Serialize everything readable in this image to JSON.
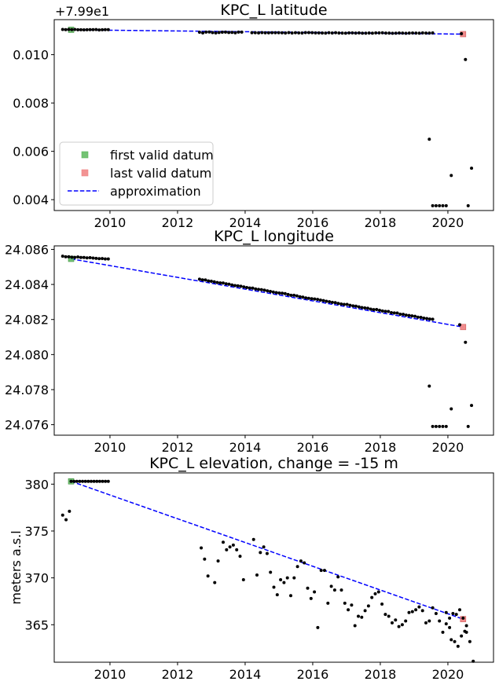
{
  "chart_data": [
    {
      "type": "scatter",
      "title": "KPC_L latitude",
      "ylabel": "",
      "offset_label": "+7.99e1",
      "xlim": [
        2008.35,
        2021.35
      ],
      "ylim": [
        0.00355,
        0.01145
      ],
      "xticks": [
        2010,
        2012,
        2014,
        2016,
        2018,
        2020
      ],
      "xtick_labels": [
        "2010",
        "2012",
        "2014",
        "2016",
        "2018",
        "2020"
      ],
      "yticks": [
        0.004,
        0.006,
        0.008,
        0.01
      ],
      "ytick_labels": [
        "0.004",
        "0.006",
        "0.008",
        "0.010"
      ],
      "legend": {
        "placement": "lower-left",
        "entries": [
          {
            "label": "first valid datum",
            "kind": "square",
            "color": "#5cb85c"
          },
          {
            "label": "last valid datum",
            "kind": "square",
            "color": "#f08080"
          },
          {
            "label": "approximation",
            "kind": "dashed",
            "color": "#0000ff"
          }
        ]
      },
      "first_valid": [
        2008.85,
        0.01103
      ],
      "last_valid": [
        2020.45,
        0.01085
      ],
      "approximation": [
        [
          2008.85,
          0.01103
        ],
        [
          2020.45,
          0.01085
        ]
      ],
      "segments": [
        {
          "x0": 2008.6,
          "x1": 2009.95,
          "n": 16,
          "y0": 0.01104,
          "y1": 0.01103,
          "jitter": 1e-05
        },
        {
          "x0": 2012.65,
          "x1": 2013.9,
          "n": 14,
          "y0": 0.01092,
          "y1": 0.01092,
          "jitter": 2e-05
        },
        {
          "x0": 2014.2,
          "x1": 2019.55,
          "n": 55,
          "y0": 0.01091,
          "y1": 0.01089,
          "jitter": 1e-05
        }
      ],
      "points": [
        [
          2019.45,
          0.0065
        ],
        [
          2019.55,
          0.00375
        ],
        [
          2019.65,
          0.00375
        ],
        [
          2019.75,
          0.00375
        ],
        [
          2019.85,
          0.00375
        ],
        [
          2019.95,
          0.00375
        ],
        [
          2020.1,
          0.005
        ],
        [
          2020.4,
          0.01087
        ],
        [
          2020.52,
          0.0098
        ],
        [
          2020.6,
          0.00375
        ],
        [
          2020.7,
          0.0053
        ]
      ]
    },
    {
      "type": "scatter",
      "title": "KPC_L longitude",
      "ylabel": "",
      "xlim": [
        2008.35,
        2021.35
      ],
      "ylim": [
        24.0754,
        24.0862
      ],
      "xticks": [
        2010,
        2012,
        2014,
        2016,
        2018,
        2020
      ],
      "xtick_labels": [
        "2010",
        "2012",
        "2014",
        "2016",
        "2018",
        "2020"
      ],
      "yticks": [
        24.076,
        24.078,
        24.08,
        24.082,
        24.084,
        24.086
      ],
      "ytick_labels": [
        "24.076",
        "24.078",
        "24.080",
        "24.082",
        "24.084",
        "24.086"
      ],
      "first_valid": [
        2008.85,
        24.08546
      ],
      "last_valid": [
        2020.45,
        24.08157
      ],
      "approximation": [
        [
          2008.85,
          24.08546
        ],
        [
          2020.45,
          24.08157
        ]
      ],
      "segments": [
        {
          "x0": 2008.6,
          "x1": 2009.95,
          "n": 16,
          "y0": 24.0856,
          "y1": 24.08545,
          "jitter": 2e-05
        },
        {
          "x0": 2012.65,
          "x1": 2019.55,
          "n": 80,
          "y0": 24.0843,
          "y1": 24.082,
          "jitter": 2e-05
        }
      ],
      "points": [
        [
          2019.45,
          24.0782
        ],
        [
          2019.55,
          24.0759
        ],
        [
          2019.65,
          24.0759
        ],
        [
          2019.75,
          24.0759
        ],
        [
          2019.85,
          24.0759
        ],
        [
          2019.95,
          24.0759
        ],
        [
          2020.1,
          24.0769
        ],
        [
          2020.35,
          24.0817
        ],
        [
          2020.52,
          24.0807
        ],
        [
          2020.6,
          24.0759
        ],
        [
          2020.7,
          24.0771
        ]
      ]
    },
    {
      "type": "scatter",
      "title": "KPC_L elevation, change = -15 m",
      "ylabel": "meters a.s.l",
      "xlim": [
        2008.35,
        2021.35
      ],
      "ylim": [
        361.0,
        381.2
      ],
      "xticks": [
        2010,
        2012,
        2014,
        2016,
        2018,
        2020
      ],
      "xtick_labels": [
        "2010",
        "2012",
        "2014",
        "2016",
        "2018",
        "2020"
      ],
      "yticks": [
        365,
        370,
        375,
        380
      ],
      "ytick_labels": [
        "365",
        "370",
        "375",
        "380"
      ],
      "first_valid": [
        2008.85,
        380.3
      ],
      "last_valid": [
        2020.45,
        365.6
      ],
      "approximation": [
        [
          2008.85,
          380.3
        ],
        [
          2020.45,
          365.6
        ]
      ],
      "segments": [
        {
          "x0": 2008.85,
          "x1": 2009.95,
          "n": 14,
          "y0": 380.3,
          "y1": 380.3,
          "jitter": 0.0
        }
      ],
      "points": [
        [
          2008.6,
          376.7
        ],
        [
          2008.7,
          376.2
        ],
        [
          2008.8,
          377.1
        ],
        [
          2012.7,
          373.2
        ],
        [
          2012.8,
          372.0
        ],
        [
          2012.9,
          370.2
        ],
        [
          2013.1,
          369.5
        ],
        [
          2013.2,
          371.8
        ],
        [
          2013.35,
          373.8
        ],
        [
          2013.45,
          373.0
        ],
        [
          2013.55,
          373.3
        ],
        [
          2013.65,
          373.5
        ],
        [
          2013.75,
          373.0
        ],
        [
          2013.85,
          372.3
        ],
        [
          2013.95,
          369.8
        ],
        [
          2014.25,
          374.1
        ],
        [
          2014.35,
          370.3
        ],
        [
          2014.45,
          372.7
        ],
        [
          2014.55,
          373.3
        ],
        [
          2014.65,
          372.6
        ],
        [
          2014.75,
          370.6
        ],
        [
          2014.85,
          369.0
        ],
        [
          2014.95,
          368.2
        ],
        [
          2015.05,
          369.8
        ],
        [
          2015.15,
          369.5
        ],
        [
          2015.25,
          370.0
        ],
        [
          2015.35,
          368.1
        ],
        [
          2015.45,
          370.0
        ],
        [
          2015.55,
          371.2
        ],
        [
          2015.65,
          371.8
        ],
        [
          2015.75,
          371.6
        ],
        [
          2015.85,
          368.9
        ],
        [
          2015.95,
          367.8
        ],
        [
          2016.05,
          368.5
        ],
        [
          2016.15,
          364.7
        ],
        [
          2016.25,
          370.8
        ],
        [
          2016.35,
          370.8
        ],
        [
          2016.45,
          367.3
        ],
        [
          2016.55,
          369.1
        ],
        [
          2016.65,
          368.7
        ],
        [
          2016.75,
          370.1
        ],
        [
          2016.85,
          368.7
        ],
        [
          2016.95,
          367.3
        ],
        [
          2017.05,
          366.6
        ],
        [
          2017.15,
          367.1
        ],
        [
          2017.25,
          364.9
        ],
        [
          2017.35,
          365.9
        ],
        [
          2017.45,
          365.8
        ],
        [
          2017.55,
          366.5
        ],
        [
          2017.65,
          367.0
        ],
        [
          2017.75,
          367.9
        ],
        [
          2017.85,
          368.3
        ],
        [
          2017.95,
          368.5
        ],
        [
          2018.05,
          367.2
        ],
        [
          2018.15,
          366.1
        ],
        [
          2018.25,
          365.9
        ],
        [
          2018.35,
          365.2
        ],
        [
          2018.45,
          365.5
        ],
        [
          2018.55,
          364.8
        ],
        [
          2018.65,
          365.0
        ],
        [
          2018.75,
          365.4
        ],
        [
          2018.85,
          366.3
        ],
        [
          2018.95,
          366.4
        ],
        [
          2019.05,
          366.6
        ],
        [
          2019.15,
          366.9
        ],
        [
          2019.25,
          366.5
        ],
        [
          2019.35,
          365.2
        ],
        [
          2019.45,
          365.4
        ],
        [
          2019.55,
          366.8
        ],
        [
          2019.65,
          366.2
        ],
        [
          2019.75,
          365.4
        ],
        [
          2019.85,
          364.2
        ],
        [
          2019.95,
          365.1
        ],
        [
          2020.05,
          365.7
        ],
        [
          2020.15,
          366.2
        ],
        [
          2020.25,
          366.1
        ],
        [
          2020.35,
          366.6
        ],
        [
          2020.45,
          365.7
        ],
        [
          2020.55,
          364.9
        ],
        [
          2020.65,
          363.2
        ],
        [
          2020.75,
          361.1
        ],
        [
          2019.95,
          366.3
        ],
        [
          2020.05,
          364.7
        ],
        [
          2020.1,
          363.4
        ],
        [
          2020.2,
          363.2
        ],
        [
          2020.3,
          362.7
        ],
        [
          2020.4,
          363.8
        ],
        [
          2020.5,
          364.3
        ],
        [
          2020.55,
          364.2
        ]
      ]
    }
  ]
}
